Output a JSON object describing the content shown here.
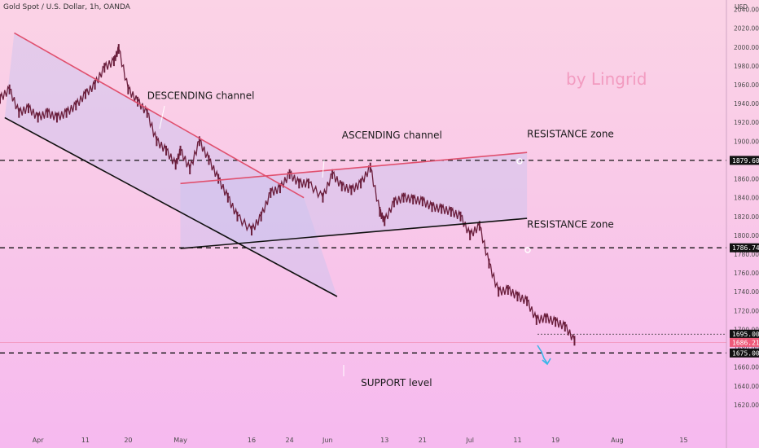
{
  "header": {
    "symbol_title": "Gold Spot / U.S. Dollar, 1h, OANDA",
    "currency": "USD"
  },
  "branding": {
    "watermark": "by Lingrid"
  },
  "annotations": {
    "descending_channel": "DESCENDING channel",
    "ascending_channel": "ASCENDING channel",
    "resistance_upper": "RESISTANCE zone",
    "resistance_lower": "RESISTANCE zone",
    "support": "SUPPORT level"
  },
  "price_tags": {
    "upper_level": "1879.609",
    "middle_level": "1786.743",
    "target": "1695.000",
    "current": "1686.210",
    "support_level": "1675.000"
  },
  "colors": {
    "red_line": "#e0506e",
    "black_line": "#111111",
    "channel_fill": "#c8c4f0",
    "candles": "#6b1f3d",
    "arrow": "#3ab6e8",
    "current_tag": "#ef5a7a",
    "tag": "#111111"
  },
  "chart_data": {
    "type": "line",
    "title": "Gold Spot / U.S. Dollar, 1h, OANDA",
    "ylabel": "USD",
    "ylim": [
      1600,
      2050
    ],
    "y_ticks": [
      1620,
      1640,
      1660,
      1680,
      1700,
      1720,
      1740,
      1760,
      1780,
      1800,
      1820,
      1840,
      1860,
      1880,
      1900,
      1920,
      1940,
      1960,
      1980,
      2000,
      2020,
      2040
    ],
    "y_tick_labels": [
      "1620.000",
      "1640.000",
      "1660.000",
      "1680.000",
      "1700.000",
      "1720.000",
      "1740.000",
      "1760.000",
      "1780.000",
      "1800.000",
      "1820.000",
      "1840.000",
      "1860.000",
      "1880.000",
      "1900.000",
      "1920.000",
      "1940.000",
      "1960.000",
      "1980.000",
      "2000.000",
      "2020.000",
      "2040.000"
    ],
    "x_tick_labels": [
      "Apr",
      "11",
      "20",
      "May",
      "16",
      "24",
      "Jun",
      "13",
      "21",
      "Jul",
      "11",
      "19",
      "Aug",
      "15"
    ],
    "x_tick_dates": [
      "2022-04-01",
      "2022-04-11",
      "2022-04-20",
      "2022-05-01",
      "2022-05-16",
      "2022-05-24",
      "2022-06-01",
      "2022-06-13",
      "2022-06-21",
      "2022-07-01",
      "2022-07-11",
      "2022-07-19",
      "2022-08-01",
      "2022-08-15"
    ],
    "xlim": [
      "2022-03-24",
      "2022-08-24"
    ],
    "series": [
      {
        "values": [
          [
            "2022-03-24",
            1945
          ],
          [
            "2022-03-26",
            1955
          ],
          [
            "2022-03-28",
            1930
          ],
          [
            "2022-03-30",
            1935
          ],
          [
            "2022-04-01",
            1925
          ],
          [
            "2022-04-03",
            1930
          ],
          [
            "2022-04-05",
            1925
          ],
          [
            "2022-04-07",
            1930
          ],
          [
            "2022-04-09",
            1938
          ],
          [
            "2022-04-11",
            1950
          ],
          [
            "2022-04-13",
            1960
          ],
          [
            "2022-04-15",
            1978
          ],
          [
            "2022-04-17",
            1985
          ],
          [
            "2022-04-18",
            1998
          ],
          [
            "2022-04-20",
            1955
          ],
          [
            "2022-04-22",
            1942
          ],
          [
            "2022-04-24",
            1930
          ],
          [
            "2022-04-26",
            1900
          ],
          [
            "2022-04-28",
            1890
          ],
          [
            "2022-04-30",
            1875
          ],
          [
            "2022-05-01",
            1890
          ],
          [
            "2022-05-03",
            1870
          ],
          [
            "2022-05-05",
            1900
          ],
          [
            "2022-05-07",
            1880
          ],
          [
            "2022-05-09",
            1860
          ],
          [
            "2022-05-11",
            1840
          ],
          [
            "2022-05-13",
            1820
          ],
          [
            "2022-05-16",
            1805
          ],
          [
            "2022-05-18",
            1820
          ],
          [
            "2022-05-20",
            1845
          ],
          [
            "2022-05-22",
            1850
          ],
          [
            "2022-05-24",
            1865
          ],
          [
            "2022-05-26",
            1855
          ],
          [
            "2022-05-28",
            1855
          ],
          [
            "2022-05-31",
            1840
          ],
          [
            "2022-06-02",
            1865
          ],
          [
            "2022-06-04",
            1852
          ],
          [
            "2022-06-06",
            1848
          ],
          [
            "2022-06-08",
            1855
          ],
          [
            "2022-06-10",
            1872
          ],
          [
            "2022-06-12",
            1825
          ],
          [
            "2022-06-13",
            1815
          ],
          [
            "2022-06-15",
            1835
          ],
          [
            "2022-06-17",
            1840
          ],
          [
            "2022-06-19",
            1838
          ],
          [
            "2022-06-21",
            1836
          ],
          [
            "2022-06-23",
            1830
          ],
          [
            "2022-06-25",
            1828
          ],
          [
            "2022-06-27",
            1825
          ],
          [
            "2022-06-29",
            1820
          ],
          [
            "2022-07-01",
            1800
          ],
          [
            "2022-07-03",
            1810
          ],
          [
            "2022-07-05",
            1770
          ],
          [
            "2022-07-07",
            1740
          ],
          [
            "2022-07-09",
            1742
          ],
          [
            "2022-07-11",
            1735
          ],
          [
            "2022-07-13",
            1730
          ],
          [
            "2022-07-15",
            1710
          ],
          [
            "2022-07-17",
            1712
          ],
          [
            "2022-07-19",
            1708
          ],
          [
            "2022-07-21",
            1703
          ],
          [
            "2022-07-23",
            1688
          ]
        ]
      }
    ],
    "levels": [
      1879.609,
      1786.743,
      1675.0
    ],
    "target_level": 1695.0,
    "current_level": 1686.21,
    "channels": [
      {
        "points": [
          [
            "2022-03-27",
            2015
          ],
          [
            "2022-05-27",
            1840
          ]
        ]
      },
      {
        "points": [
          [
            "2022-03-25",
            1925
          ],
          [
            "2022-06-03",
            1735
          ]
        ]
      },
      {
        "points": [
          [
            "2022-05-01",
            1855
          ],
          [
            "2022-07-13",
            1888
          ]
        ]
      },
      {
        "points": [
          [
            "2022-05-01",
            1786
          ],
          [
            "2022-07-13",
            1818
          ]
        ]
      }
    ],
    "annotation_points": [
      {
        "label": "DESCENDING channel",
        "x": "2022-04-24",
        "y": 1945
      },
      {
        "label": "ASCENDING channel",
        "x": "2022-06-04",
        "y": 1903
      },
      {
        "label": "RESISTANCE zone",
        "x": "2022-07-13",
        "y": 1904
      },
      {
        "label": "RESISTANCE zone",
        "x": "2022-07-13",
        "y": 1808
      },
      {
        "label": "SUPPORT level",
        "x": "2022-06-08",
        "y": 1640
      }
    ],
    "legend": "none",
    "grid": false
  }
}
